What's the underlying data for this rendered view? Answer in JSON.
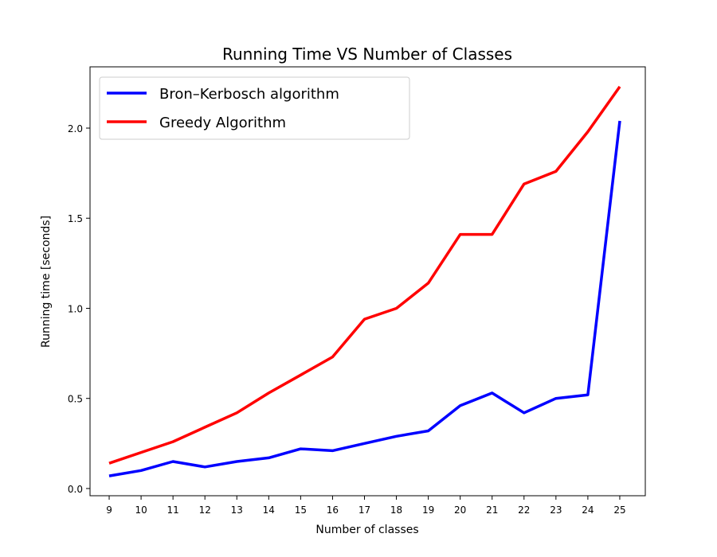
{
  "chart_data": {
    "type": "line",
    "title": "Running Time VS Number of Classes",
    "xlabel": "Number of classes",
    "ylabel": "Running time [seconds]",
    "x": [
      9,
      10,
      11,
      12,
      13,
      14,
      15,
      16,
      17,
      18,
      19,
      20,
      21,
      22,
      23,
      24,
      25
    ],
    "xlim": [
      8.4,
      25.8
    ],
    "ylim": [
      -0.04,
      2.34
    ],
    "yticks": [
      0.0,
      0.5,
      1.0,
      1.5,
      2.0
    ],
    "ytick_labels": [
      "0.0",
      "0.5",
      "1.0",
      "1.5",
      "2.0"
    ],
    "xtick_labels": [
      "9",
      "10",
      "11",
      "12",
      "13",
      "14",
      "15",
      "16",
      "17",
      "18",
      "19",
      "20",
      "21",
      "22",
      "23",
      "24",
      "25"
    ],
    "legend_position": "top-left",
    "grid": false,
    "series": [
      {
        "name": "Bron–Kerbosch algorithm",
        "color": "#0000ff",
        "values": [
          0.07,
          0.1,
          0.15,
          0.12,
          0.15,
          0.17,
          0.22,
          0.21,
          0.25,
          0.29,
          0.32,
          0.46,
          0.53,
          0.42,
          0.5,
          0.52,
          2.04
        ]
      },
      {
        "name": "Greedy Algorithm",
        "color": "#ff0000",
        "values": [
          0.14,
          0.2,
          0.26,
          0.34,
          0.42,
          0.53,
          0.63,
          0.73,
          0.94,
          1.0,
          1.14,
          1.41,
          1.41,
          1.69,
          1.76,
          1.98,
          2.23
        ]
      }
    ]
  }
}
